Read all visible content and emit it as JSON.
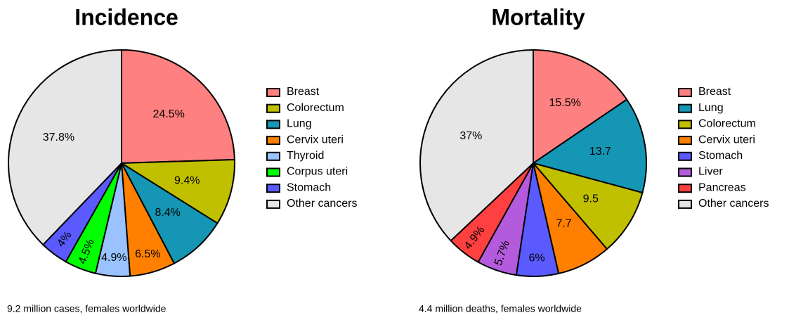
{
  "chart_data": [
    {
      "type": "pie",
      "title": "Incidence",
      "caption": "9.2 million cases, females worldwide",
      "categories": [
        "Breast",
        "Colorectum",
        "Lung",
        "Cervix uteri",
        "Thyroid",
        "Corpus uteri",
        "Stomach",
        "Other cancers"
      ],
      "values": [
        24.5,
        9.4,
        8.4,
        6.5,
        4.9,
        4.5,
        4,
        37.8
      ],
      "value_labels": [
        "24.5%",
        "9.4%",
        "8.4%",
        "6.5%",
        "4.9%",
        "4.5%",
        "4%",
        "37.8%"
      ],
      "colors": [
        "#ff8080",
        "#c0c000",
        "#1496b4",
        "#ff8000",
        "#99c2ff",
        "#00ff00",
        "#5a5aff",
        "#e6e6e6"
      ]
    },
    {
      "type": "pie",
      "title": "Mortality",
      "caption": "4.4 million deaths, females worldwide",
      "categories": [
        "Breast",
        "Lung",
        "Colorectum",
        "Cervix uteri",
        "Stomach",
        "Liver",
        "Pancreas",
        "Other cancers"
      ],
      "values": [
        15.5,
        13.7,
        9.5,
        7.7,
        6,
        5.7,
        4.9,
        37
      ],
      "value_labels": [
        "15.5%",
        "13.7",
        "9.5",
        "7.7",
        "6%",
        "5.7%",
        "4.9%",
        "37%"
      ],
      "colors": [
        "#ff8080",
        "#1496b4",
        "#c0c000",
        "#ff8000",
        "#5a5aff",
        "#b45adc",
        "#ff4040",
        "#e6e6e6"
      ]
    }
  ]
}
